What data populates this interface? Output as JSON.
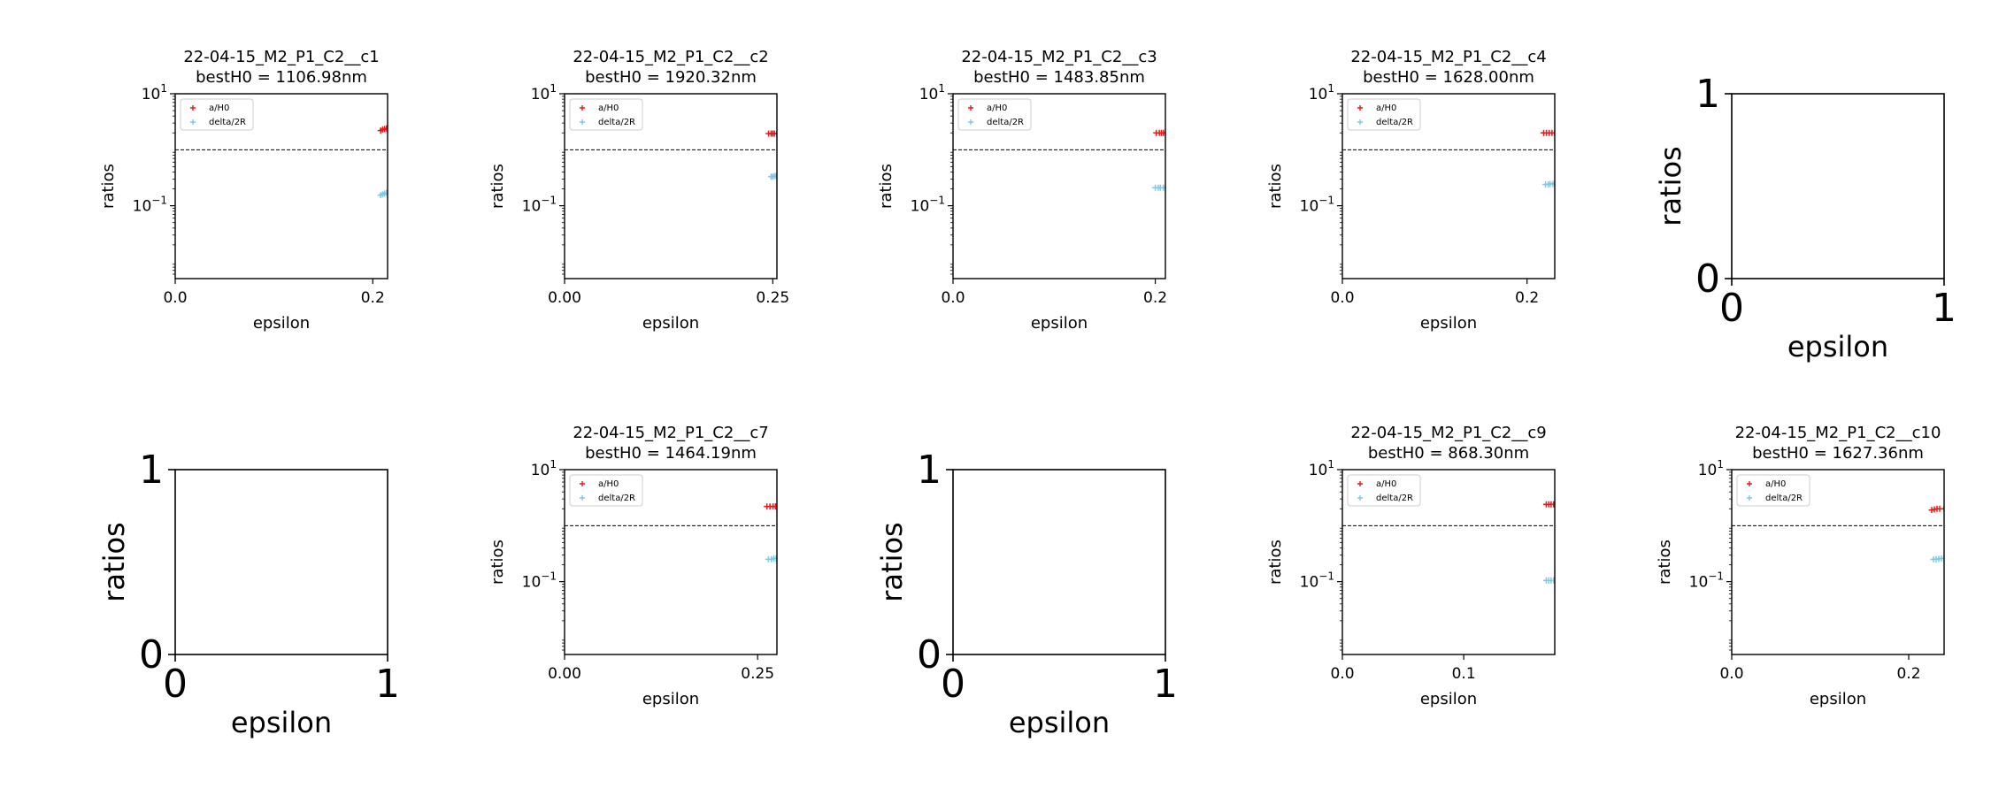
{
  "figure": {
    "charts": [
      {
        "title": "22-04-15_M2_P1_C2__c1",
        "subtitle": "bestH0 = 1106.98nm",
        "empty": false,
        "xlabel": "epsilon",
        "ylabel": "ratios",
        "xlim": [
          0,
          0.215
        ],
        "xticks": [
          0,
          0.2
        ],
        "xtick_labels": [
          "0.0",
          "0.2"
        ],
        "y_scale": "log",
        "ylim": [
          0.005,
          10
        ],
        "yticks": [
          10,
          0.1
        ],
        "threshold": 1,
        "legend": {
          "position": "upper-left",
          "entries": [
            "a/H0",
            "delta/2R"
          ]
        },
        "series": [
          {
            "name": "a/H0",
            "color": "#e41a1c",
            "marker": "+",
            "x": [
              0.208,
              0.21,
              0.212,
              0.214,
              0.215
            ],
            "y": [
              2.2,
              2.3,
              2.35,
              2.4,
              2.3
            ]
          },
          {
            "name": "delta/2R",
            "color": "#7ec8e3",
            "marker": "+",
            "x": [
              0.208,
              0.21,
              0.212,
              0.214,
              0.215
            ],
            "y": [
              0.155,
              0.16,
              0.165,
              0.17,
              0.165
            ]
          }
        ]
      },
      {
        "title": "22-04-15_M2_P1_C2__c2",
        "subtitle": "bestH0 = 1920.32nm",
        "empty": false,
        "xlabel": "epsilon",
        "ylabel": "ratios",
        "xlim": [
          0,
          0.255
        ],
        "xticks": [
          0,
          0.25
        ],
        "xtick_labels": [
          "0.00",
          "0.25"
        ],
        "y_scale": "log",
        "ylim": [
          0.005,
          10
        ],
        "yticks": [
          10,
          0.1
        ],
        "threshold": 1,
        "legend": {
          "position": "upper-left",
          "entries": [
            "a/H0",
            "delta/2R"
          ]
        },
        "series": [
          {
            "name": "a/H0",
            "color": "#e41a1c",
            "marker": "+",
            "x": [
              0.245,
              0.248,
              0.25,
              0.252,
              0.255
            ],
            "y": [
              1.95,
              1.95,
              1.95,
              1.95,
              1.95
            ]
          },
          {
            "name": "delta/2R",
            "color": "#7ec8e3",
            "marker": "+",
            "x": [
              0.248,
              0.25,
              0.252,
              0.254,
              0.255
            ],
            "y": [
              0.33,
              0.33,
              0.34,
              0.34,
              0.34
            ]
          }
        ]
      },
      {
        "title": "22-04-15_M2_P1_C2__c3",
        "subtitle": "bestH0 = 1483.85nm",
        "empty": false,
        "xlabel": "epsilon",
        "ylabel": "ratios",
        "xlim": [
          0,
          0.21
        ],
        "xticks": [
          0,
          0.2
        ],
        "xtick_labels": [
          "0.0",
          "0.2"
        ],
        "y_scale": "log",
        "ylim": [
          0.005,
          10
        ],
        "yticks": [
          10,
          0.1
        ],
        "threshold": 1,
        "legend": {
          "position": "upper-left",
          "entries": [
            "a/H0",
            "delta/2R"
          ]
        },
        "series": [
          {
            "name": "a/H0",
            "color": "#e41a1c",
            "marker": "+",
            "x": [
              0.201,
              0.204,
              0.206,
              0.208,
              0.21
            ],
            "y": [
              2.0,
              2.0,
              2.0,
              2.0,
              2.0
            ]
          },
          {
            "name": "delta/2R",
            "color": "#7ec8e3",
            "marker": "+",
            "x": [
              0.2,
              0.203,
              0.205,
              0.208,
              0.21
            ],
            "y": [
              0.21,
              0.21,
              0.21,
              0.21,
              0.21
            ]
          }
        ]
      },
      {
        "title": "22-04-15_M2_P1_C2__c4",
        "subtitle": "bestH0 = 1628.00nm",
        "empty": false,
        "xlabel": "epsilon",
        "ylabel": "ratios",
        "xlim": [
          0,
          0.23
        ],
        "xticks": [
          0,
          0.2
        ],
        "xtick_labels": [
          "0.0",
          "0.2"
        ],
        "y_scale": "log",
        "ylim": [
          0.005,
          10
        ],
        "yticks": [
          10,
          0.1
        ],
        "threshold": 1,
        "legend": {
          "position": "upper-left",
          "entries": [
            "a/H0",
            "delta/2R"
          ]
        },
        "series": [
          {
            "name": "a/H0",
            "color": "#e41a1c",
            "marker": "+",
            "x": [
              0.218,
              0.221,
              0.224,
              0.227,
              0.23
            ],
            "y": [
              2.0,
              2.0,
              2.0,
              2.0,
              2.0
            ]
          },
          {
            "name": "delta/2R",
            "color": "#7ec8e3",
            "marker": "+",
            "x": [
              0.22,
              0.223,
              0.225,
              0.228,
              0.23
            ],
            "y": [
              0.24,
              0.24,
              0.245,
              0.245,
              0.25
            ]
          }
        ]
      },
      {
        "title": "",
        "subtitle": "",
        "empty": true,
        "xlabel": "epsilon",
        "ylabel": "ratios"
      },
      {
        "title": "",
        "subtitle": "",
        "empty": true,
        "xlabel": "epsilon",
        "ylabel": "ratios"
      },
      {
        "title": "22-04-15_M2_P1_C2__c7",
        "subtitle": "bestH0 = 1464.19nm",
        "empty": false,
        "xlabel": "epsilon",
        "ylabel": "ratios",
        "xlim": [
          0,
          0.275
        ],
        "xticks": [
          0,
          0.25
        ],
        "xtick_labels": [
          "0.00",
          "0.25"
        ],
        "y_scale": "log",
        "ylim": [
          0.005,
          10
        ],
        "yticks": [
          10,
          0.1
        ],
        "threshold": 1,
        "legend": {
          "position": "upper-left",
          "entries": [
            "a/H0",
            "delta/2R"
          ]
        },
        "series": [
          {
            "name": "a/H0",
            "color": "#e41a1c",
            "marker": "+",
            "x": [
              0.262,
              0.266,
              0.27,
              0.273,
              0.275
            ],
            "y": [
              2.2,
              2.2,
              2.2,
              2.2,
              2.2
            ]
          },
          {
            "name": "delta/2R",
            "color": "#7ec8e3",
            "marker": "+",
            "x": [
              0.264,
              0.268,
              0.271,
              0.274,
              0.275
            ],
            "y": [
              0.25,
              0.25,
              0.26,
              0.26,
              0.26
            ]
          }
        ]
      },
      {
        "title": "",
        "subtitle": "",
        "empty": true,
        "xlabel": "epsilon",
        "ylabel": "ratios"
      },
      {
        "title": "22-04-15_M2_P1_C2__c9",
        "subtitle": "bestH0 = 868.30nm",
        "empty": false,
        "xlabel": "epsilon",
        "ylabel": "ratios",
        "xlim": [
          0,
          0.175
        ],
        "xticks": [
          0,
          0.1
        ],
        "xtick_labels": [
          "0.0",
          "0.1"
        ],
        "y_scale": "log",
        "ylim": [
          0.005,
          10
        ],
        "yticks": [
          10,
          0.1
        ],
        "threshold": 1,
        "legend": {
          "position": "upper-left",
          "entries": [
            "a/H0",
            "delta/2R"
          ]
        },
        "series": [
          {
            "name": "a/H0",
            "color": "#e41a1c",
            "marker": "+",
            "x": [
              0.168,
              0.17,
              0.172,
              0.174,
              0.175
            ],
            "y": [
              2.4,
              2.4,
              2.4,
              2.4,
              2.4
            ]
          },
          {
            "name": "delta/2R",
            "color": "#7ec8e3",
            "marker": "+",
            "x": [
              0.168,
              0.17,
              0.172,
              0.174,
              0.175
            ],
            "y": [
              0.105,
              0.105,
              0.105,
              0.105,
              0.105
            ]
          }
        ]
      },
      {
        "title": "22-04-15_M2_P1_C2__c10",
        "subtitle": "bestH0 = 1627.36nm",
        "empty": false,
        "xlabel": "epsilon",
        "ylabel": "ratios",
        "xlim": [
          0,
          0.24
        ],
        "xticks": [
          0,
          0.2
        ],
        "xtick_labels": [
          "0.0",
          "0.2"
        ],
        "y_scale": "log",
        "ylim": [
          0.005,
          10
        ],
        "yticks": [
          10,
          0.1
        ],
        "threshold": 1,
        "legend": {
          "position": "upper-left",
          "entries": [
            "a/H0",
            "delta/2R"
          ]
        },
        "series": [
          {
            "name": "a/H0",
            "color": "#e41a1c",
            "marker": "+",
            "x": [
              0.226,
              0.229,
              0.232,
              0.235,
              0.24
            ],
            "y": [
              1.9,
              1.95,
              2.0,
              2.0,
              2.0
            ]
          },
          {
            "name": "delta/2R",
            "color": "#7ec8e3",
            "marker": "+",
            "x": [
              0.228,
              0.231,
              0.234,
              0.237,
              0.24
            ],
            "y": [
              0.25,
              0.25,
              0.255,
              0.26,
              0.26
            ]
          }
        ]
      }
    ]
  }
}
